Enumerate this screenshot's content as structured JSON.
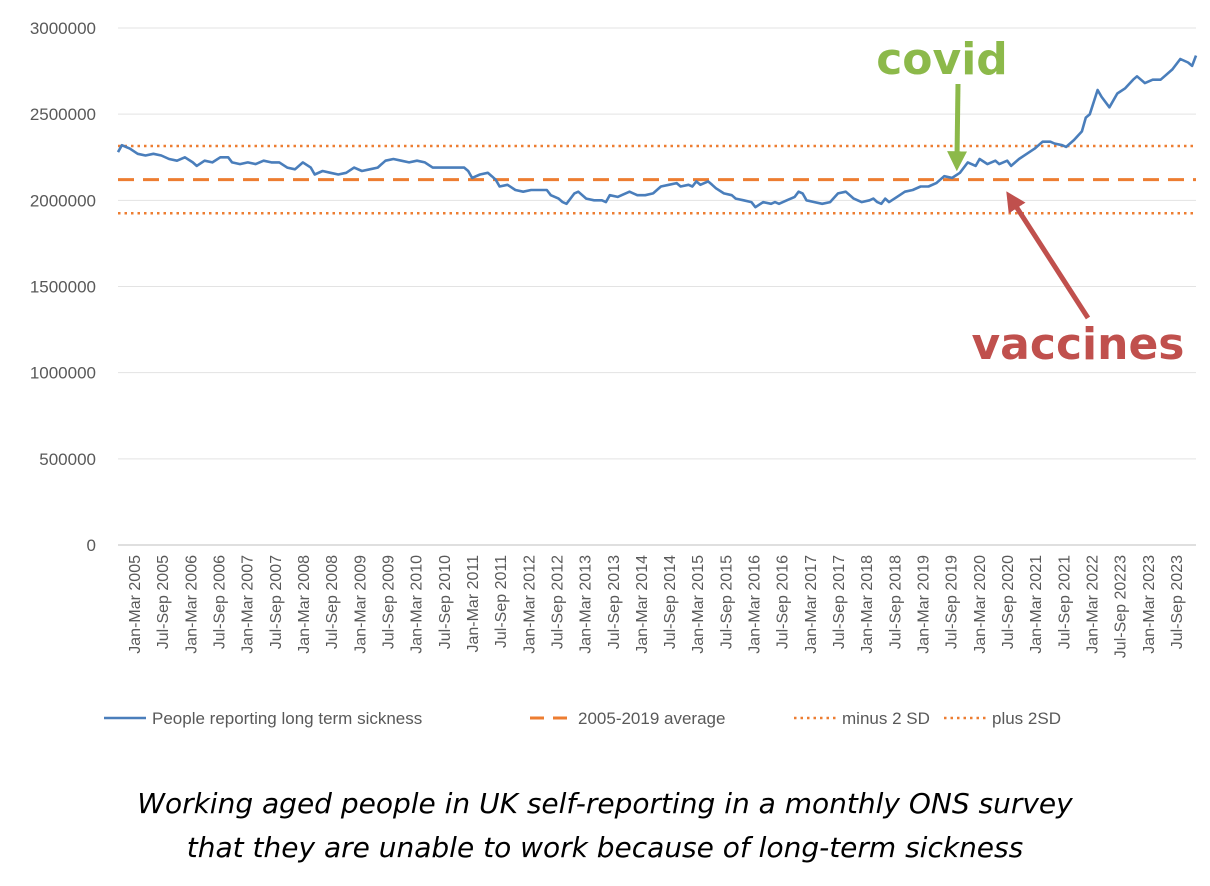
{
  "chart_data": {
    "type": "line",
    "title": "",
    "xlabel": "",
    "ylabel": "",
    "ylim": [
      0,
      3000000
    ],
    "y_ticks": [
      "0",
      "500000",
      "1000000",
      "1500000",
      "2000000",
      "2500000",
      "3000000"
    ],
    "x_ticks": [
      "Jan-Mar 2005",
      "Jul-Sep 2005",
      "Jan-Mar 2006",
      "Jul-Sep 2006",
      "Jan-Mar 2007",
      "Jul-Sep 2007",
      "Jan-Mar 2008",
      "Jul-Sep 2008",
      "Jan-Mar 2009",
      "Jul-Sep 2009",
      "Jan-Mar 2010",
      "Jul-Sep 2010",
      "Jan-Mar 2011",
      "Jul-Sep 2011",
      "Jan-Mar 2012",
      "Jul-Sep 2012",
      "Jan-Mar 2013",
      "Jul-Sep 2013",
      "Jan-Mar 2014",
      "Jul-Sep 2014",
      "Jan-Mar 2015",
      "Jul-Sep 2015",
      "Jan-Mar 2016",
      "Jul-Sep 2016",
      "Jan-Mar 2017",
      "Jul-Sep 2017",
      "Jan-Mar 2018",
      "Jul-Sep 2018",
      "Jan-Mar 2019",
      "Jul-Sep 2019",
      "Jan-Mar 2020",
      "Jul-Sep 2020",
      "Jan-Mar 2021",
      "Jul-Sep 2021",
      "Jan-Mar 2022",
      "Jul-Sep 20223",
      "Jan-Mar 2023",
      "Jul-Sep 2023"
    ],
    "grid": true,
    "legend_position": "bottom",
    "series": [
      {
        "name": "People reporting long term sickness",
        "color": "#4a7ebb",
        "style": "solid",
        "points": [
          [
            0,
            2280000
          ],
          [
            1,
            2320000
          ],
          [
            3,
            2300000
          ],
          [
            5,
            2270000
          ],
          [
            7,
            2260000
          ],
          [
            9,
            2270000
          ],
          [
            11,
            2260000
          ],
          [
            13,
            2240000
          ],
          [
            15,
            2230000
          ],
          [
            17,
            2250000
          ],
          [
            19,
            2220000
          ],
          [
            20,
            2200000
          ],
          [
            22,
            2230000
          ],
          [
            24,
            2220000
          ],
          [
            26,
            2250000
          ],
          [
            28,
            2250000
          ],
          [
            29,
            2220000
          ],
          [
            31,
            2210000
          ],
          [
            33,
            2220000
          ],
          [
            35,
            2210000
          ],
          [
            37,
            2230000
          ],
          [
            39,
            2220000
          ],
          [
            41,
            2220000
          ],
          [
            43,
            2190000
          ],
          [
            45,
            2180000
          ],
          [
            47,
            2220000
          ],
          [
            49,
            2190000
          ],
          [
            50,
            2150000
          ],
          [
            52,
            2170000
          ],
          [
            54,
            2160000
          ],
          [
            56,
            2150000
          ],
          [
            58,
            2160000
          ],
          [
            60,
            2190000
          ],
          [
            62,
            2170000
          ],
          [
            64,
            2180000
          ],
          [
            66,
            2190000
          ],
          [
            68,
            2230000
          ],
          [
            70,
            2240000
          ],
          [
            72,
            2230000
          ],
          [
            74,
            2220000
          ],
          [
            76,
            2230000
          ],
          [
            78,
            2220000
          ],
          [
            80,
            2190000
          ],
          [
            82,
            2190000
          ],
          [
            84,
            2190000
          ],
          [
            86,
            2190000
          ],
          [
            88,
            2190000
          ],
          [
            89,
            2170000
          ],
          [
            90,
            2130000
          ],
          [
            92,
            2150000
          ],
          [
            94,
            2160000
          ],
          [
            95,
            2140000
          ],
          [
            96,
            2120000
          ],
          [
            97,
            2080000
          ],
          [
            99,
            2090000
          ],
          [
            101,
            2060000
          ],
          [
            103,
            2050000
          ],
          [
            105,
            2060000
          ],
          [
            107,
            2060000
          ],
          [
            109,
            2060000
          ],
          [
            110,
            2030000
          ],
          [
            112,
            2010000
          ],
          [
            113,
            1990000
          ],
          [
            114,
            1980000
          ],
          [
            116,
            2040000
          ],
          [
            117,
            2050000
          ],
          [
            119,
            2010000
          ],
          [
            121,
            2000000
          ],
          [
            123,
            2000000
          ],
          [
            124,
            1990000
          ],
          [
            125,
            2030000
          ],
          [
            127,
            2020000
          ],
          [
            128,
            2030000
          ],
          [
            130,
            2050000
          ],
          [
            132,
            2030000
          ],
          [
            134,
            2030000
          ],
          [
            136,
            2040000
          ],
          [
            138,
            2080000
          ],
          [
            140,
            2090000
          ],
          [
            142,
            2100000
          ],
          [
            143,
            2080000
          ],
          [
            145,
            2090000
          ],
          [
            146,
            2080000
          ],
          [
            147,
            2110000
          ],
          [
            148,
            2090000
          ],
          [
            150,
            2110000
          ],
          [
            151,
            2090000
          ],
          [
            152,
            2070000
          ],
          [
            154,
            2040000
          ],
          [
            156,
            2030000
          ],
          [
            157,
            2010000
          ],
          [
            159,
            2000000
          ],
          [
            161,
            1990000
          ],
          [
            162,
            1960000
          ],
          [
            164,
            1990000
          ],
          [
            166,
            1980000
          ],
          [
            167,
            1990000
          ],
          [
            168,
            1980000
          ],
          [
            170,
            2000000
          ],
          [
            172,
            2020000
          ],
          [
            173,
            2050000
          ],
          [
            174,
            2040000
          ],
          [
            175,
            2000000
          ],
          [
            177,
            1990000
          ],
          [
            179,
            1980000
          ],
          [
            181,
            1990000
          ],
          [
            183,
            2040000
          ],
          [
            185,
            2050000
          ],
          [
            187,
            2010000
          ],
          [
            189,
            1990000
          ],
          [
            191,
            2000000
          ],
          [
            192,
            2010000
          ],
          [
            193,
            1990000
          ],
          [
            194,
            1980000
          ],
          [
            195,
            2010000
          ],
          [
            196,
            1990000
          ],
          [
            198,
            2020000
          ],
          [
            200,
            2050000
          ],
          [
            202,
            2060000
          ],
          [
            204,
            2080000
          ],
          [
            206,
            2080000
          ],
          [
            208,
            2100000
          ],
          [
            210,
            2140000
          ],
          [
            212,
            2130000
          ],
          [
            214,
            2160000
          ],
          [
            216,
            2220000
          ],
          [
            218,
            2200000
          ],
          [
            219,
            2240000
          ],
          [
            221,
            2210000
          ],
          [
            223,
            2230000
          ],
          [
            224,
            2210000
          ],
          [
            226,
            2230000
          ],
          [
            227,
            2200000
          ],
          [
            229,
            2240000
          ],
          [
            231,
            2270000
          ],
          [
            233,
            2300000
          ],
          [
            235,
            2340000
          ],
          [
            237,
            2340000
          ],
          [
            238,
            2330000
          ],
          [
            240,
            2320000
          ],
          [
            241,
            2310000
          ],
          [
            243,
            2350000
          ],
          [
            245,
            2400000
          ],
          [
            246,
            2480000
          ],
          [
            247,
            2500000
          ],
          [
            249,
            2640000
          ],
          [
            250,
            2600000
          ],
          [
            252,
            2540000
          ],
          [
            254,
            2620000
          ],
          [
            256,
            2650000
          ],
          [
            258,
            2700000
          ],
          [
            259,
            2720000
          ],
          [
            261,
            2680000
          ],
          [
            263,
            2700000
          ],
          [
            265,
            2700000
          ],
          [
            266,
            2720000
          ],
          [
            268,
            2760000
          ],
          [
            270,
            2820000
          ],
          [
            272,
            2800000
          ],
          [
            273,
            2780000
          ],
          [
            274,
            2840000
          ]
        ]
      },
      {
        "name": "2005-2019 average",
        "color": "#ed7d31",
        "style": "dashed",
        "y": 2120000
      },
      {
        "name": "minus 2 SD",
        "color": "#ed7d31",
        "style": "dotted",
        "y": 1925000
      },
      {
        "name": "plus 2SD",
        "color": "#ed7d31",
        "style": "dotted",
        "y": 2315000
      }
    ],
    "annotations": [
      {
        "text": "covid",
        "color": "#8cb94a",
        "target_index": 214,
        "target_y": 2140000
      },
      {
        "text": "vaccines",
        "color": "#c0504d",
        "target_index": 226,
        "target_y": 2090000
      }
    ],
    "x_index_range": [
      0,
      274
    ]
  },
  "caption": {
    "line1": "Working aged people in UK self-reporting in a monthly ONS survey",
    "line2": "that they are unable to work because of long-term sickness"
  }
}
